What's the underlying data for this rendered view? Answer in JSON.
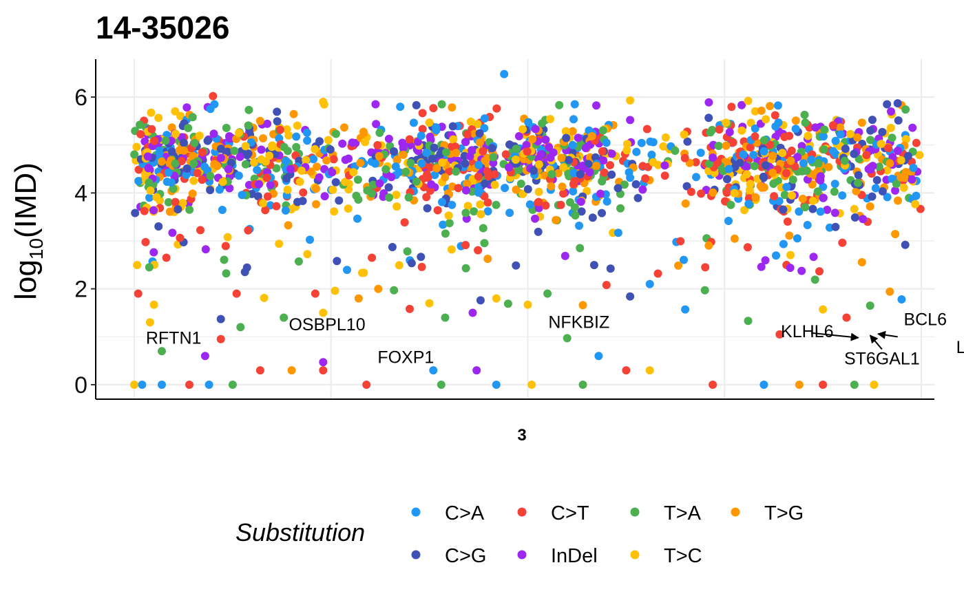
{
  "chart_data": {
    "type": "scatter",
    "title": "14-35026",
    "ylabel": "log10(IMD)",
    "ylabel_parts": {
      "base": "log",
      "subscript": "10",
      "arg": "(IMD)"
    },
    "facet": "3",
    "xlim": [
      0,
      200
    ],
    "ylim": [
      -0.3,
      6.8
    ],
    "yticks": [
      0,
      2,
      4,
      6
    ],
    "grid": true,
    "legend": {
      "title": "Substitution",
      "placement": "bottom",
      "items": [
        {
          "label": "C>A",
          "color": "#2196F3"
        },
        {
          "label": "C>T",
          "color": "#F44336"
        },
        {
          "label": "T>A",
          "color": "#4CAF50"
        },
        {
          "label": "T>G",
          "color": "#FF9800"
        },
        {
          "label": "C>G",
          "color": "#3F51B5"
        },
        {
          "label": "InDel",
          "color": "#9C27F0"
        },
        {
          "label": "T>C",
          "color": "#FFC107"
        }
      ]
    },
    "annotations": [
      {
        "text": "RFTN1",
        "x": 10,
        "y": 0.98
      },
      {
        "text": "OSBPL10",
        "x": 49,
        "y": 1.26
      },
      {
        "text": "FOXP1",
        "x": 69,
        "y": 0.58
      },
      {
        "text": "NFKBIZ",
        "x": 113,
        "y": 1.31
      },
      {
        "text": "KLHL6",
        "x": 171,
        "y": 1.12
      },
      {
        "text": "BCL6",
        "x": 201,
        "y": 1.37
      },
      {
        "text": "ST6GAL1",
        "x": 190,
        "y": 0.55
      },
      {
        "text": "LPP",
        "x": 213,
        "y": 0.79
      }
    ],
    "label_links": [
      {
        "from": [
          172,
          1.08
        ],
        "to": [
          184,
          0.98
        ]
      },
      {
        "from": [
          190,
          0.74
        ],
        "to": [
          187,
          1.03
        ]
      },
      {
        "from": [
          194,
          1.0
        ],
        "to": [
          189,
          1.06
        ]
      }
    ],
    "series_note": "dense scatter of ~2500 points; dominant band y=3.5-5.8, sparse points down to 0",
    "points": [
      {
        "x": 20,
        "y": 6.02,
        "s": "C>T"
      },
      {
        "x": 94,
        "y": 6.48,
        "s": "C>A"
      },
      {
        "x": 48,
        "y": 5.9,
        "s": "T>C"
      },
      {
        "x": 126,
        "y": 5.93,
        "s": "T>C"
      },
      {
        "x": 156,
        "y": 5.92,
        "s": "T>C"
      },
      {
        "x": 146,
        "y": 5.89,
        "s": "InDel"
      },
      {
        "x": 194,
        "y": 5.87,
        "s": "C>G"
      },
      {
        "x": 108,
        "y": 5.83,
        "s": "T>A"
      },
      {
        "x": 196,
        "y": 5.74,
        "s": "T>A"
      },
      {
        "x": 0,
        "y": 0,
        "s": "T>C"
      },
      {
        "x": 2,
        "y": 0,
        "s": "C>A"
      },
      {
        "x": 7,
        "y": 0,
        "s": "C>A"
      },
      {
        "x": 14,
        "y": 0,
        "s": "C>T"
      },
      {
        "x": 19,
        "y": 0,
        "s": "C>A"
      },
      {
        "x": 25,
        "y": 0,
        "s": "T>A"
      },
      {
        "x": 32,
        "y": 0.3,
        "s": "C>T"
      },
      {
        "x": 40,
        "y": 0.3,
        "s": "T>G"
      },
      {
        "x": 48,
        "y": 0.47,
        "s": "InDel"
      },
      {
        "x": 48,
        "y": 0.3,
        "s": "C>T"
      },
      {
        "x": 59,
        "y": 0,
        "s": "C>T"
      },
      {
        "x": 76,
        "y": 0.3,
        "s": "C>A"
      },
      {
        "x": 78,
        "y": 0,
        "s": "T>A"
      },
      {
        "x": 87,
        "y": 0.3,
        "s": "InDel"
      },
      {
        "x": 92,
        "y": 0,
        "s": "C>A"
      },
      {
        "x": 101,
        "y": 0,
        "s": "T>C"
      },
      {
        "x": 114,
        "y": 0,
        "s": "T>A"
      },
      {
        "x": 118,
        "y": 0.6,
        "s": "C>A"
      },
      {
        "x": 125,
        "y": 0.3,
        "s": "C>T"
      },
      {
        "x": 131,
        "y": 0.3,
        "s": "T>C"
      },
      {
        "x": 147,
        "y": 0,
        "s": "C>T"
      },
      {
        "x": 160,
        "y": 0,
        "s": "C>A"
      },
      {
        "x": 169,
        "y": 0,
        "s": "T>G"
      },
      {
        "x": 175,
        "y": 0,
        "s": "C>T"
      },
      {
        "x": 183,
        "y": 0,
        "s": "T>A"
      },
      {
        "x": 188,
        "y": 0,
        "s": "T>C"
      },
      {
        "x": 1,
        "y": 1.9,
        "s": "C>T"
      },
      {
        "x": 4,
        "y": 1.3,
        "s": "T>C"
      },
      {
        "x": 5,
        "y": 1.67,
        "s": "T>C"
      },
      {
        "x": 7,
        "y": 0.7,
        "s": "T>A"
      },
      {
        "x": 18,
        "y": 0.6,
        "s": "InDel"
      },
      {
        "x": 22,
        "y": 0.95,
        "s": "C>T"
      },
      {
        "x": 22,
        "y": 1.37,
        "s": "C>G"
      },
      {
        "x": 26,
        "y": 1.9,
        "s": "C>T"
      },
      {
        "x": 27,
        "y": 1.2,
        "s": "T>A"
      },
      {
        "x": 33,
        "y": 1.81,
        "s": "T>C"
      },
      {
        "x": 38,
        "y": 1.4,
        "s": "T>A"
      },
      {
        "x": 46,
        "y": 1.9,
        "s": "C>T"
      },
      {
        "x": 48,
        "y": 1.5,
        "s": "T>C"
      },
      {
        "x": 51,
        "y": 1.96,
        "s": "T>C"
      },
      {
        "x": 57,
        "y": 1.8,
        "s": "T>G"
      },
      {
        "x": 62,
        "y": 2.0,
        "s": "T>G"
      },
      {
        "x": 66,
        "y": 1.97,
        "s": "T>A"
      },
      {
        "x": 70,
        "y": 1.58,
        "s": "C>T"
      },
      {
        "x": 75,
        "y": 1.7,
        "s": "T>C"
      },
      {
        "x": 79,
        "y": 1.4,
        "s": "T>A"
      },
      {
        "x": 86,
        "y": 1.5,
        "s": "InDel"
      },
      {
        "x": 88,
        "y": 1.76,
        "s": "C>G"
      },
      {
        "x": 92,
        "y": 1.8,
        "s": "T>C"
      },
      {
        "x": 95,
        "y": 1.69,
        "s": "T>A"
      },
      {
        "x": 100,
        "y": 1.67,
        "s": "T>C"
      },
      {
        "x": 105,
        "y": 1.9,
        "s": "T>A"
      },
      {
        "x": 110,
        "y": 0.97,
        "s": "T>A"
      },
      {
        "x": 114,
        "y": 1.66,
        "s": "T>G"
      },
      {
        "x": 120,
        "y": 2.08,
        "s": "C>T"
      },
      {
        "x": 126,
        "y": 1.84,
        "s": "C>G"
      },
      {
        "x": 131,
        "y": 2.1,
        "s": "C>A"
      },
      {
        "x": 140,
        "y": 1.57,
        "s": "C>A"
      },
      {
        "x": 145,
        "y": 1.97,
        "s": "T>A"
      },
      {
        "x": 156,
        "y": 1.33,
        "s": "T>A"
      },
      {
        "x": 164,
        "y": 1.05,
        "s": "C>T"
      },
      {
        "x": 173,
        "y": 2.19,
        "s": "T>A"
      },
      {
        "x": 175,
        "y": 1.57,
        "s": "T>C"
      },
      {
        "x": 181,
        "y": 1.4,
        "s": "C>T"
      },
      {
        "x": 187,
        "y": 1.65,
        "s": "T>A"
      },
      {
        "x": 192,
        "y": 1.94,
        "s": "T>G"
      },
      {
        "x": 195,
        "y": 1.78,
        "s": "C>A"
      }
    ]
  }
}
